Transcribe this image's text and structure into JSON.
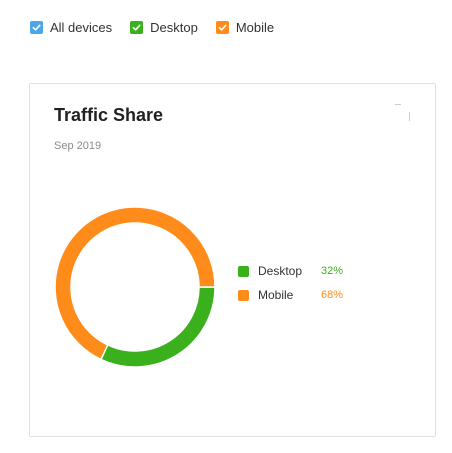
{
  "filters": [
    {
      "label": "All devices",
      "checked": true,
      "color": "#4da6e8"
    },
    {
      "label": "Desktop",
      "checked": true,
      "color": "#3ab01c"
    },
    {
      "label": "Mobile",
      "checked": true,
      "color": "#ff8c1a"
    }
  ],
  "card": {
    "title": "Traffic Share",
    "subtitle": "Sep 2019"
  },
  "chart_data": {
    "type": "pie",
    "categories": [
      "Desktop",
      "Mobile"
    ],
    "values": [
      32,
      68
    ],
    "value_labels": [
      "32%",
      "68%"
    ],
    "colors": [
      "#3ab01c",
      "#ff8c1a"
    ],
    "title": "Traffic Share",
    "subtitle": "Sep 2019",
    "legend_position": "right"
  }
}
